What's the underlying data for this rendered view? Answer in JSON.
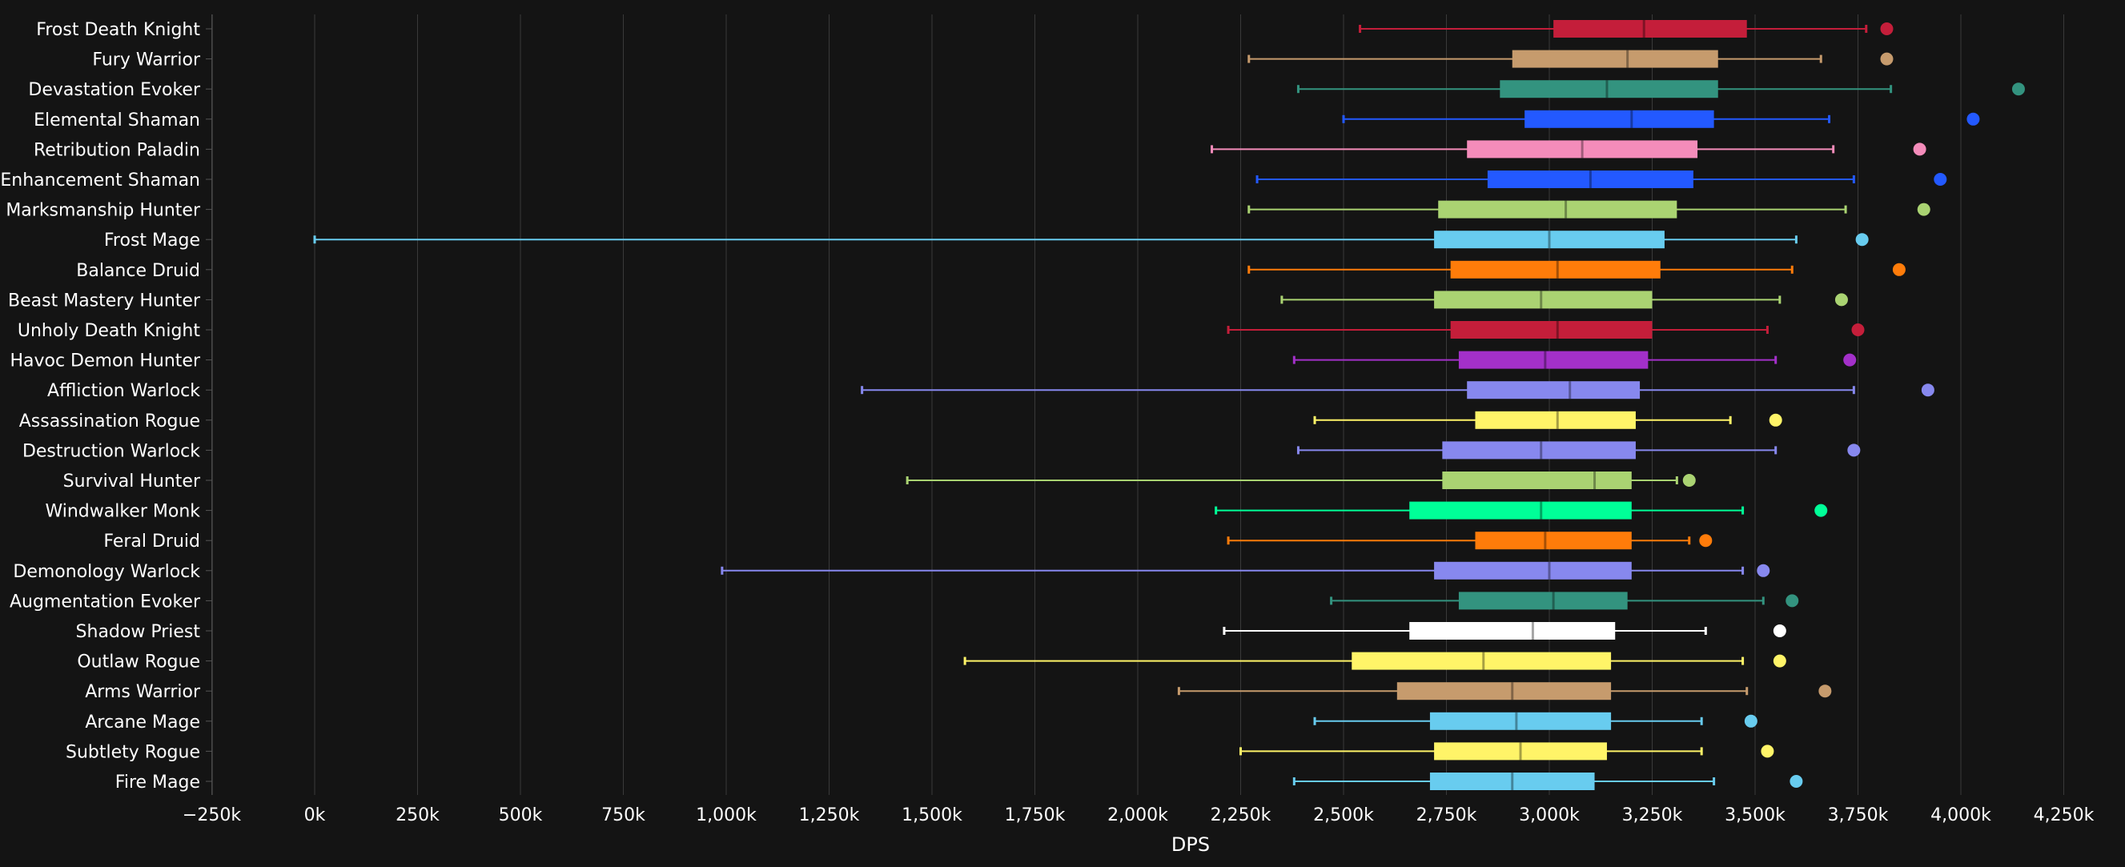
{
  "colors": {
    "background": "#141414",
    "grid": "#3a3a3a",
    "text": "#ffffff"
  },
  "chart_data": {
    "type": "boxplot",
    "orientation": "horizontal",
    "xlabel": "DPS",
    "xlim": [
      -250000,
      4300000
    ],
    "xticks": [
      -250000,
      0,
      250000,
      500000,
      750000,
      1000000,
      1250000,
      1500000,
      1750000,
      2000000,
      2250000,
      2500000,
      2750000,
      3000000,
      3250000,
      3500000,
      3750000,
      4000000,
      4250000
    ],
    "xtick_labels": [
      "−250k",
      "0k",
      "250k",
      "500k",
      "750k",
      "1,000k",
      "1,250k",
      "1,500k",
      "1,750k",
      "2,000k",
      "2,250k",
      "2,500k",
      "2,750k",
      "3,000k",
      "3,250k",
      "3,500k",
      "3,750k",
      "4,000k",
      "4,250k"
    ],
    "grid": true,
    "series": [
      {
        "name": "Frost Death Knight",
        "color": "#C41E3A",
        "min": 2540000,
        "q1": 3010000,
        "median": 3230000,
        "q3": 3480000,
        "max": 3770000,
        "outlier": 3820000
      },
      {
        "name": "Fury Warrior",
        "color": "#C69B6D",
        "min": 2270000,
        "q1": 2910000,
        "median": 3190000,
        "q3": 3410000,
        "max": 3660000,
        "outlier": 3820000
      },
      {
        "name": "Devastation Evoker",
        "color": "#33937F",
        "min": 2390000,
        "q1": 2880000,
        "median": 3140000,
        "q3": 3410000,
        "max": 3830000,
        "outlier": 4140000
      },
      {
        "name": "Elemental Shaman",
        "color": "#2359FF",
        "min": 2500000,
        "q1": 2940000,
        "median": 3200000,
        "q3": 3400000,
        "max": 3680000,
        "outlier": 4030000
      },
      {
        "name": "Retribution Paladin",
        "color": "#F48CBA",
        "min": 2180000,
        "q1": 2800000,
        "median": 3080000,
        "q3": 3360000,
        "max": 3690000,
        "outlier": 3900000
      },
      {
        "name": "Enhancement Shaman",
        "color": "#2359FF",
        "min": 2290000,
        "q1": 2850000,
        "median": 3100000,
        "q3": 3350000,
        "max": 3740000,
        "outlier": 3950000
      },
      {
        "name": "Marksmanship Hunter",
        "color": "#AAD372",
        "min": 2270000,
        "q1": 2730000,
        "median": 3040000,
        "q3": 3310000,
        "max": 3720000,
        "outlier": 3910000
      },
      {
        "name": "Frost Mage",
        "color": "#68CCEF",
        "min": 0,
        "q1": 2720000,
        "median": 3000000,
        "q3": 3280000,
        "max": 3600000,
        "outlier": 3760000
      },
      {
        "name": "Balance Druid",
        "color": "#FF7C0A",
        "min": 2270000,
        "q1": 2760000,
        "median": 3020000,
        "q3": 3270000,
        "max": 3590000,
        "outlier": 3850000
      },
      {
        "name": "Beast Mastery Hunter",
        "color": "#AAD372",
        "min": 2350000,
        "q1": 2720000,
        "median": 2980000,
        "q3": 3250000,
        "max": 3560000,
        "outlier": 3710000
      },
      {
        "name": "Unholy Death Knight",
        "color": "#C41E3A",
        "min": 2220000,
        "q1": 2760000,
        "median": 3020000,
        "q3": 3250000,
        "max": 3530000,
        "outlier": 3750000
      },
      {
        "name": "Havoc Demon Hunter",
        "color": "#A330C9",
        "min": 2380000,
        "q1": 2780000,
        "median": 2990000,
        "q3": 3240000,
        "max": 3550000,
        "outlier": 3730000
      },
      {
        "name": "Affliction Warlock",
        "color": "#8788EE",
        "min": 1330000,
        "q1": 2800000,
        "median": 3050000,
        "q3": 3220000,
        "max": 3740000,
        "outlier": 3920000
      },
      {
        "name": "Assassination Rogue",
        "color": "#FFF468",
        "min": 2430000,
        "q1": 2820000,
        "median": 3020000,
        "q3": 3210000,
        "max": 3440000,
        "outlier": 3550000
      },
      {
        "name": "Destruction Warlock",
        "color": "#8788EE",
        "min": 2390000,
        "q1": 2740000,
        "median": 2980000,
        "q3": 3210000,
        "max": 3550000,
        "outlier": 3740000
      },
      {
        "name": "Survival Hunter",
        "color": "#AAD372",
        "min": 1440000,
        "q1": 2740000,
        "median": 3110000,
        "q3": 3200000,
        "max": 3310000,
        "outlier": 3340000
      },
      {
        "name": "Windwalker Monk",
        "color": "#00FF98",
        "min": 2190000,
        "q1": 2660000,
        "median": 2980000,
        "q3": 3200000,
        "max": 3470000,
        "outlier": 3660000
      },
      {
        "name": "Feral Druid",
        "color": "#FF7C0A",
        "min": 2220000,
        "q1": 2820000,
        "median": 2990000,
        "q3": 3200000,
        "max": 3340000,
        "outlier": 3380000
      },
      {
        "name": "Demonology Warlock",
        "color": "#8788EE",
        "min": 990000,
        "q1": 2720000,
        "median": 3000000,
        "q3": 3200000,
        "max": 3470000,
        "outlier": 3520000
      },
      {
        "name": "Augmentation Evoker",
        "color": "#33937F",
        "min": 2470000,
        "q1": 2780000,
        "median": 3010000,
        "q3": 3190000,
        "max": 3520000,
        "outlier": 3590000
      },
      {
        "name": "Shadow Priest",
        "color": "#FFFFFF",
        "min": 2210000,
        "q1": 2660000,
        "median": 2960000,
        "q3": 3160000,
        "max": 3380000,
        "outlier": 3560000
      },
      {
        "name": "Outlaw Rogue",
        "color": "#FFF468",
        "min": 1580000,
        "q1": 2520000,
        "median": 2840000,
        "q3": 3150000,
        "max": 3470000,
        "outlier": 3560000
      },
      {
        "name": "Arms Warrior",
        "color": "#C69B6D",
        "min": 2100000,
        "q1": 2630000,
        "median": 2910000,
        "q3": 3150000,
        "max": 3480000,
        "outlier": 3670000
      },
      {
        "name": "Arcane Mage",
        "color": "#68CCEF",
        "min": 2430000,
        "q1": 2710000,
        "median": 2920000,
        "q3": 3150000,
        "max": 3370000,
        "outlier": 3490000
      },
      {
        "name": "Subtlety Rogue",
        "color": "#FFF468",
        "min": 2250000,
        "q1": 2720000,
        "median": 2930000,
        "q3": 3140000,
        "max": 3370000,
        "outlier": 3530000
      },
      {
        "name": "Fire Mage",
        "color": "#68CCEF",
        "min": 2380000,
        "q1": 2710000,
        "median": 2910000,
        "q3": 3110000,
        "max": 3400000,
        "outlier": 3600000
      }
    ]
  }
}
